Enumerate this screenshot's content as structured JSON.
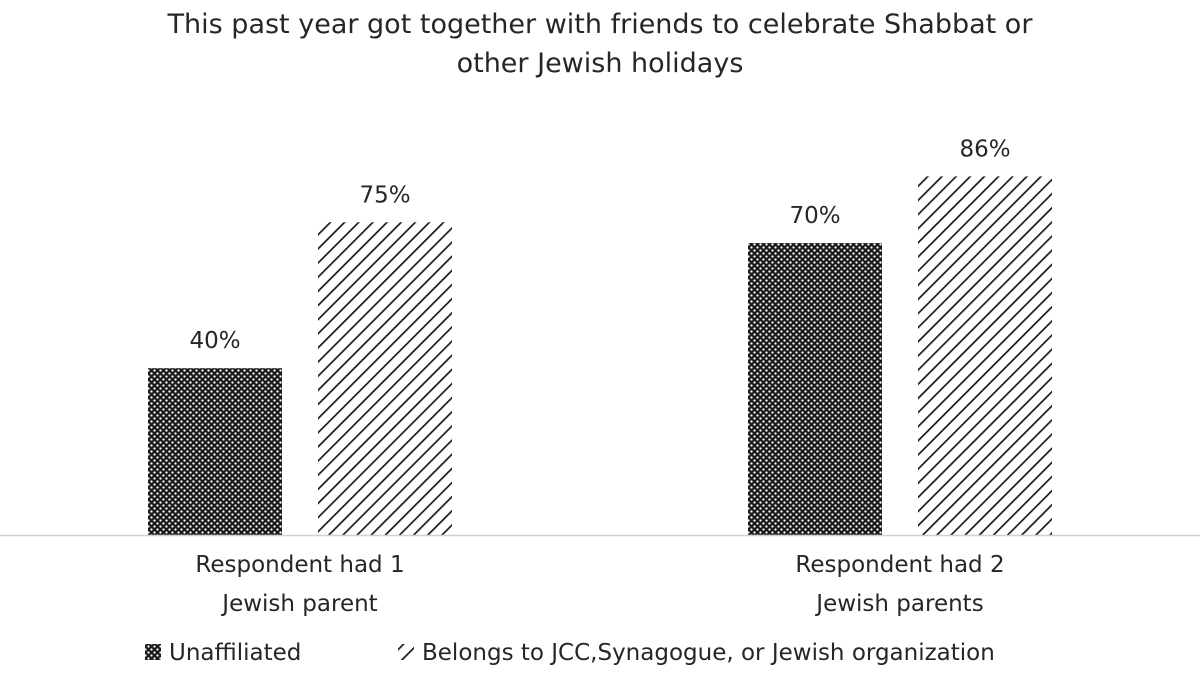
{
  "chart_data": {
    "type": "bar",
    "title": "This past year got together with friends to celebrate Shabbat or other Jewish holidays",
    "title_lines": [
      "This past year got together with friends to celebrate Shabbat or",
      "other Jewish holidays"
    ],
    "categories": [
      "Respondent had 1 Jewish parent",
      "Respondent had 2 Jewish parents"
    ],
    "category_lines": [
      [
        "Respondent had 1",
        "Jewish parent"
      ],
      [
        "Respondent had 2",
        "Jewish parents"
      ]
    ],
    "series": [
      {
        "name": "Unaffiliated",
        "pattern": "dots",
        "values": [
          40,
          70
        ],
        "labels": [
          "40%",
          "70%"
        ]
      },
      {
        "name": "Belongs to JCC,Synagogue, or Jewish organization",
        "pattern": "diagonal-lines",
        "values": [
          75,
          86
        ],
        "labels": [
          "75%",
          "86%"
        ]
      }
    ],
    "ylim": [
      0,
      100
    ],
    "grid": false,
    "legend_position": "bottom",
    "colors": {
      "ink": "#1a1a1a",
      "text": "#262626",
      "axis": "#d0d0d0",
      "background": "#ffffff"
    }
  }
}
